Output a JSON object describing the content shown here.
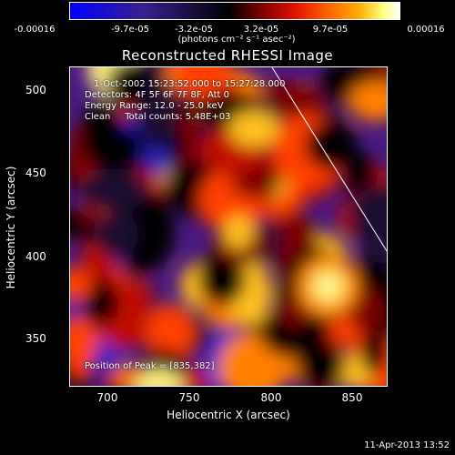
{
  "colorbar": {
    "ticks": [
      "-0.00016",
      "-9.7e-05",
      "-3.2e-05",
      "3.2e-05",
      "9.7e-05",
      "0.00016"
    ],
    "unit": "(photons cm⁻² s⁻¹ asec⁻²)"
  },
  "title": "Reconstructed RHESSI Image",
  "annotations": {
    "time_range": "1-Oct-2002 15:23:52.000 to 15:27:28.000",
    "detectors": "Detectors: 4F 5F 6F 7F 8F, Att 0",
    "energy": "Energy Range: 12.0 - 25.0 keV",
    "method": "Clean     Total counts: 5.48E+03",
    "peak": "Position of Peak = [835,382]"
  },
  "chart_data": {
    "type": "heatmap",
    "title": "Reconstructed RHESSI Image",
    "xlabel": "Heliocentric X (arcsec)",
    "ylabel": "Heliocentric Y (arcsec)",
    "xlim": [
      677,
      872
    ],
    "ylim": [
      320,
      516
    ],
    "xticks": [
      700,
      750,
      800,
      850
    ],
    "yticks": [
      350,
      400,
      450,
      500
    ],
    "colorbar_range": [
      -0.00016,
      0.00016
    ],
    "peak_position": [
      835,
      382
    ]
  },
  "axes": {
    "xticks": [
      "700",
      "750",
      "800",
      "850"
    ],
    "yticks": [
      "350",
      "400",
      "450",
      "500"
    ],
    "xlabel": "Heliocentric X (arcsec)",
    "ylabel": "Heliocentric Y (arcsec)"
  },
  "timestamp": "11-Apr-2013 13:52"
}
